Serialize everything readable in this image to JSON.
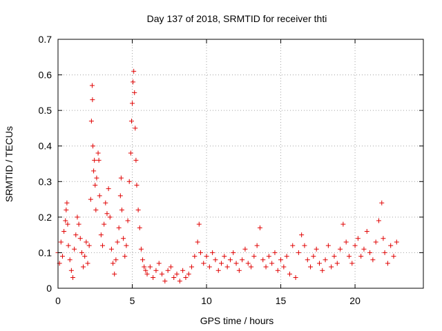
{
  "chart_data": {
    "type": "scatter",
    "title": "Day 137 of 2018, SRMTID for receiver thti",
    "xlabel": "GPS time / hours",
    "ylabel": "SRMTID / TECUs",
    "xlim": [
      0,
      24.6
    ],
    "ylim": [
      0,
      0.7
    ],
    "x_ticks": [
      0,
      5,
      10,
      15,
      20
    ],
    "y_ticks": [
      0,
      0.1,
      0.2,
      0.3,
      0.4,
      0.5,
      0.6,
      0.7
    ],
    "x_tick_labels": [
      "0",
      "5",
      "10",
      "15",
      "20"
    ],
    "y_tick_labels": [
      "0",
      "0.1",
      "0.2",
      "0.3",
      "0.4",
      "0.5",
      "0.6",
      "0.7"
    ],
    "grid": true,
    "marker": "+",
    "marker_color": "#e00000",
    "x_range_of_points": [
      0,
      22.8
    ],
    "series": [
      {
        "name": "SRMTID",
        "points": [
          [
            0.0,
            0.1
          ],
          [
            0.1,
            0.07
          ],
          [
            0.2,
            0.13
          ],
          [
            0.3,
            0.09
          ],
          [
            0.4,
            0.16
          ],
          [
            0.5,
            0.19
          ],
          [
            0.55,
            0.22
          ],
          [
            0.6,
            0.24
          ],
          [
            0.65,
            0.18
          ],
          [
            0.7,
            0.12
          ],
          [
            0.8,
            0.08
          ],
          [
            0.9,
            0.05
          ],
          [
            1.0,
            0.03
          ],
          [
            1.1,
            0.11
          ],
          [
            1.2,
            0.15
          ],
          [
            1.3,
            0.2
          ],
          [
            1.4,
            0.18
          ],
          [
            1.5,
            0.14
          ],
          [
            1.6,
            0.1
          ],
          [
            1.7,
            0.06
          ],
          [
            1.8,
            0.09
          ],
          [
            1.9,
            0.13
          ],
          [
            2.0,
            0.07
          ],
          [
            2.1,
            0.12
          ],
          [
            2.2,
            0.25
          ],
          [
            2.25,
            0.47
          ],
          [
            2.3,
            0.57
          ],
          [
            2.32,
            0.53
          ],
          [
            2.35,
            0.4
          ],
          [
            2.4,
            0.33
          ],
          [
            2.45,
            0.36
          ],
          [
            2.5,
            0.29
          ],
          [
            2.55,
            0.22
          ],
          [
            2.6,
            0.31
          ],
          [
            2.7,
            0.38
          ],
          [
            2.75,
            0.36
          ],
          [
            2.8,
            0.26
          ],
          [
            2.9,
            0.15
          ],
          [
            3.0,
            0.12
          ],
          [
            3.1,
            0.18
          ],
          [
            3.2,
            0.24
          ],
          [
            3.3,
            0.21
          ],
          [
            3.4,
            0.28
          ],
          [
            3.5,
            0.2
          ],
          [
            3.6,
            0.11
          ],
          [
            3.7,
            0.07
          ],
          [
            3.8,
            0.04
          ],
          [
            3.9,
            0.08
          ],
          [
            4.0,
            0.13
          ],
          [
            4.1,
            0.17
          ],
          [
            4.2,
            0.26
          ],
          [
            4.25,
            0.31
          ],
          [
            4.3,
            0.22
          ],
          [
            4.4,
            0.14
          ],
          [
            4.5,
            0.09
          ],
          [
            4.6,
            0.12
          ],
          [
            4.7,
            0.19
          ],
          [
            4.8,
            0.3
          ],
          [
            4.9,
            0.38
          ],
          [
            4.95,
            0.47
          ],
          [
            5.0,
            0.52
          ],
          [
            5.05,
            0.58
          ],
          [
            5.1,
            0.61
          ],
          [
            5.15,
            0.55
          ],
          [
            5.2,
            0.45
          ],
          [
            5.25,
            0.36
          ],
          [
            5.3,
            0.29
          ],
          [
            5.4,
            0.22
          ],
          [
            5.5,
            0.17
          ],
          [
            5.6,
            0.11
          ],
          [
            5.7,
            0.08
          ],
          [
            5.8,
            0.06
          ],
          [
            5.9,
            0.05
          ],
          [
            6.0,
            0.04
          ],
          [
            6.2,
            0.06
          ],
          [
            6.4,
            0.03
          ],
          [
            6.6,
            0.05
          ],
          [
            6.8,
            0.07
          ],
          [
            7.0,
            0.04
          ],
          [
            7.2,
            0.02
          ],
          [
            7.4,
            0.05
          ],
          [
            7.6,
            0.06
          ],
          [
            7.8,
            0.03
          ],
          [
            8.0,
            0.04
          ],
          [
            8.2,
            0.02
          ],
          [
            8.4,
            0.05
          ],
          [
            8.6,
            0.03
          ],
          [
            8.8,
            0.04
          ],
          [
            9.0,
            0.06
          ],
          [
            9.2,
            0.09
          ],
          [
            9.4,
            0.13
          ],
          [
            9.5,
            0.18
          ],
          [
            9.6,
            0.1
          ],
          [
            9.8,
            0.07
          ],
          [
            10.0,
            0.09
          ],
          [
            10.2,
            0.06
          ],
          [
            10.4,
            0.1
          ],
          [
            10.6,
            0.08
          ],
          [
            10.8,
            0.05
          ],
          [
            11.0,
            0.07
          ],
          [
            11.2,
            0.09
          ],
          [
            11.4,
            0.06
          ],
          [
            11.6,
            0.08
          ],
          [
            11.8,
            0.1
          ],
          [
            12.0,
            0.07
          ],
          [
            12.2,
            0.05
          ],
          [
            12.4,
            0.08
          ],
          [
            12.6,
            0.11
          ],
          [
            12.8,
            0.07
          ],
          [
            13.0,
            0.06
          ],
          [
            13.2,
            0.09
          ],
          [
            13.4,
            0.12
          ],
          [
            13.6,
            0.17
          ],
          [
            13.8,
            0.08
          ],
          [
            14.0,
            0.06
          ],
          [
            14.2,
            0.09
          ],
          [
            14.4,
            0.07
          ],
          [
            14.6,
            0.1
          ],
          [
            14.8,
            0.05
          ],
          [
            15.0,
            0.08
          ],
          [
            15.2,
            0.06
          ],
          [
            15.4,
            0.09
          ],
          [
            15.6,
            0.04
          ],
          [
            15.8,
            0.12
          ],
          [
            16.0,
            0.03
          ],
          [
            16.2,
            0.1
          ],
          [
            16.4,
            0.15
          ],
          [
            16.6,
            0.12
          ],
          [
            16.8,
            0.08
          ],
          [
            17.0,
            0.06
          ],
          [
            17.2,
            0.09
          ],
          [
            17.4,
            0.11
          ],
          [
            17.6,
            0.07
          ],
          [
            17.8,
            0.05
          ],
          [
            18.0,
            0.08
          ],
          [
            18.2,
            0.12
          ],
          [
            18.4,
            0.06
          ],
          [
            18.6,
            0.09
          ],
          [
            18.8,
            0.07
          ],
          [
            19.0,
            0.11
          ],
          [
            19.2,
            0.18
          ],
          [
            19.4,
            0.13
          ],
          [
            19.6,
            0.09
          ],
          [
            19.8,
            0.07
          ],
          [
            20.0,
            0.12
          ],
          [
            20.2,
            0.14
          ],
          [
            20.4,
            0.09
          ],
          [
            20.6,
            0.11
          ],
          [
            20.8,
            0.16
          ],
          [
            21.0,
            0.1
          ],
          [
            21.2,
            0.08
          ],
          [
            21.4,
            0.13
          ],
          [
            21.6,
            0.19
          ],
          [
            21.8,
            0.24
          ],
          [
            21.9,
            0.14
          ],
          [
            22.0,
            0.1
          ],
          [
            22.2,
            0.07
          ],
          [
            22.4,
            0.12
          ],
          [
            22.6,
            0.09
          ],
          [
            22.8,
            0.13
          ]
        ]
      }
    ]
  }
}
